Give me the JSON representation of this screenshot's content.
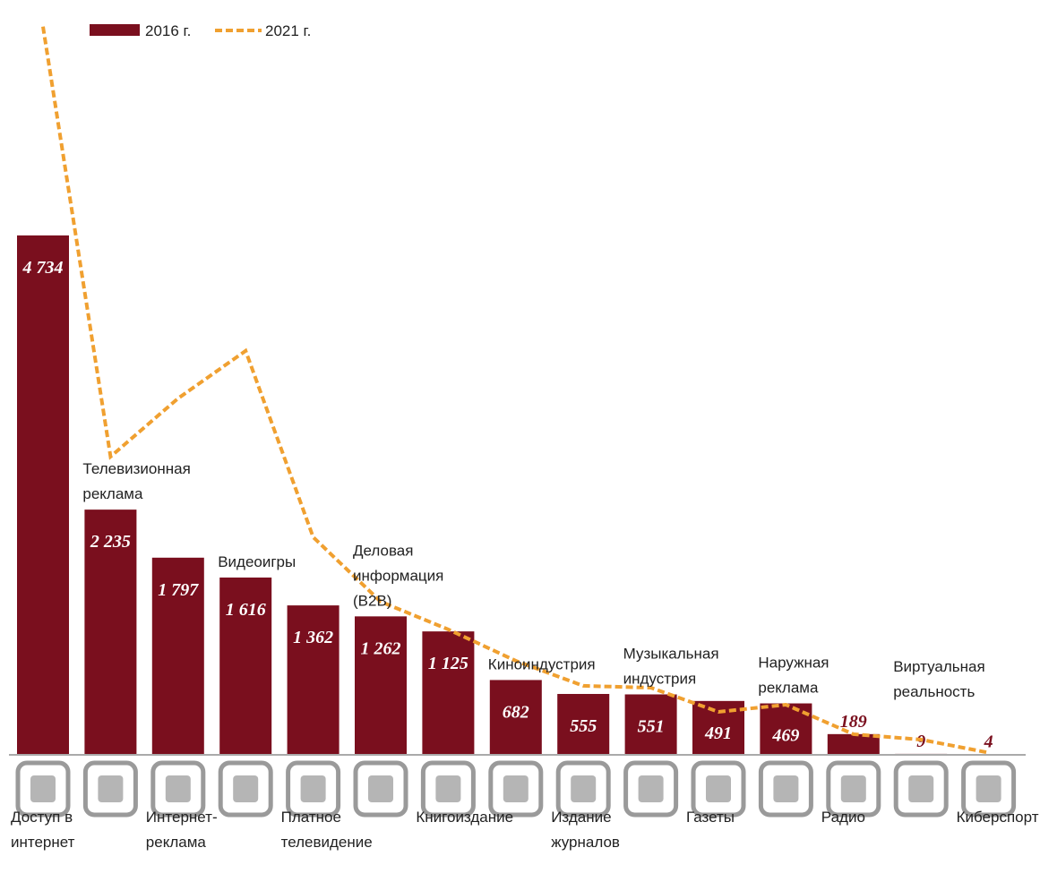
{
  "chart_data": {
    "type": "bar",
    "categories": [
      "Доступ в\nинтернет",
      "Телевизионная\nреклама",
      "Интернет-\nреклама",
      "Видеоигры",
      "Платное\nтелевидение",
      "Деловая\nинформация\n(B2B)",
      "Книгоиздание",
      "Киноиндустрия",
      "Издание\nжурналов",
      "Музыкальная\nиндустрия",
      "Газеты",
      "Наружная\nреклама",
      "Радио",
      "Виртуальная\nреальность",
      "Киберспорт"
    ],
    "series": [
      {
        "name": "2016 г.",
        "color": "#7a0f1e",
        "type": "bar",
        "values": [
          4734,
          2235,
          1797,
          1616,
          1362,
          1262,
          1125,
          682,
          555,
          551,
          491,
          469,
          189,
          9,
          4
        ],
        "value_labels": [
          "4 734",
          "2 235",
          "1 797",
          "1 616",
          "1 362",
          "1 262",
          "1 125",
          "682",
          "555",
          "551",
          "491",
          "469",
          "189",
          "9",
          "4"
        ]
      },
      {
        "name": "2021 г.",
        "color": "#f0a030",
        "type": "line",
        "dashed": true,
        "values": [
          6637,
          2718,
          3249,
          3682,
          1984,
          1396,
          1143,
          857,
          629,
          612,
          392,
          457,
          188,
          139,
          20
        ]
      }
    ],
    "ylim": [
      0,
      6700
    ]
  }
}
